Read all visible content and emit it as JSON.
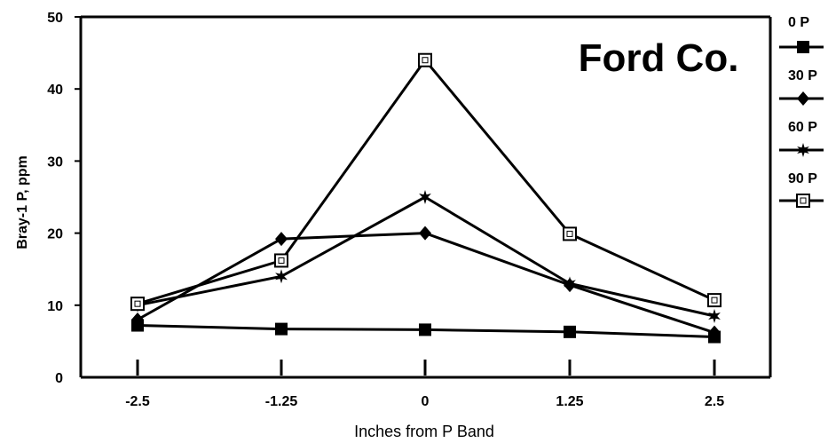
{
  "chart_data": {
    "type": "line",
    "title": "Ford Co.",
    "xlabel": "Inches from P Band",
    "ylabel": "Bray-1 P, ppm",
    "x": [
      -2.5,
      -1.25,
      0,
      1.25,
      2.5
    ],
    "x_tick_labels": [
      "-2.5",
      "-1.25",
      "0",
      "1.25",
      "2.5"
    ],
    "y_tick_labels": [
      "0",
      "10",
      "20",
      "30",
      "40",
      "50"
    ],
    "ylim": [
      0,
      50
    ],
    "grid": false,
    "legend_position": "right",
    "series": [
      {
        "name": "0 P",
        "marker": "filled-square",
        "values": [
          7.2,
          6.7,
          6.6,
          6.3,
          5.6
        ]
      },
      {
        "name": "30 P",
        "marker": "filled-diamond",
        "values": [
          8.0,
          19.2,
          20.0,
          12.8,
          6.2
        ]
      },
      {
        "name": "60 P",
        "marker": "star",
        "values": [
          10.0,
          14.0,
          25.0,
          13.0,
          8.5
        ]
      },
      {
        "name": "90 P",
        "marker": "open-square",
        "values": [
          10.2,
          16.2,
          44.0,
          19.9,
          10.7
        ]
      }
    ]
  }
}
